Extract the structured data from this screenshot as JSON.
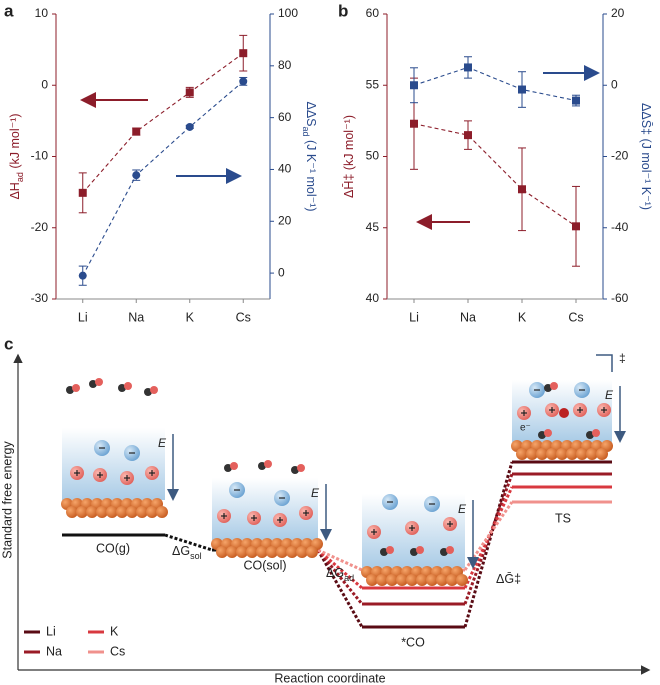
{
  "chart_data": [
    {
      "type": "line",
      "panel": "a",
      "categories": [
        "Li",
        "Na",
        "K",
        "Cs"
      ],
      "ylabel": {
        "symbol": "ΔH",
        "sub": "ad",
        "unit": " (kJ mol⁻¹)"
      },
      "y2label": {
        "symbol": "ΔΔS",
        "sub": "ad",
        "unit": " (J K⁻¹ mol⁻¹)"
      },
      "ylim": [
        -30,
        10
      ],
      "yticks": [
        -30,
        -20,
        -10,
        0,
        10
      ],
      "y2lim": [
        -10,
        100
      ],
      "y2ticks": [
        0,
        20,
        40,
        60,
        80,
        100
      ],
      "series": [
        {
          "color": "#8c1d2a",
          "marker": "square",
          "values": [
            -15.1,
            -6.5,
            -1,
            4.5
          ],
          "errors": [
            2.8,
            0.5,
            0.7,
            2.5
          ]
        },
        {
          "color": "#2a4b8d",
          "marker": "circle",
          "axis": "y2",
          "values": [
            -1,
            37.8,
            56.4,
            74
          ],
          "errors": [
            3.7,
            2,
            0.6,
            1.5
          ]
        }
      ]
    },
    {
      "type": "line",
      "panel": "b",
      "categories": [
        "Li",
        "Na",
        "K",
        "Cs"
      ],
      "ylabel": {
        "symbol": "ΔH̄‡",
        "sub": "",
        "unit": " (kJ mol⁻¹)"
      },
      "y2label": {
        "symbol": "ΔΔS̄‡",
        "sub": "",
        "unit": " (J mol⁻¹ K⁻¹)"
      },
      "ylim": [
        40,
        60
      ],
      "yticks": [
        40,
        45,
        50,
        55,
        60
      ],
      "y2lim": [
        -60,
        20
      ],
      "y2ticks": [
        -60,
        -40,
        -20,
        0,
        20
      ],
      "series": [
        {
          "color": "#8c1d2a",
          "marker": "square",
          "values": [
            52.3,
            51.5,
            47.7,
            45.1
          ],
          "errors": [
            3.2,
            1,
            2.9,
            2.8
          ]
        },
        {
          "color": "#2a4b8d",
          "marker": "square",
          "axis": "y2",
          "values": [
            0,
            5,
            -1.2,
            -4.3
          ],
          "errors": [
            4.9,
            3,
            5,
            1.5
          ]
        }
      ]
    }
  ],
  "diagram": {
    "panel": "c",
    "ylabel": "Standard free energy",
    "xlabel": "Reaction coordinate",
    "states": [
      "CO(g)",
      "CO(sol)",
      "*CO",
      "TS"
    ],
    "steps": [
      {
        "symbol": "ΔG",
        "sub": "sol"
      },
      {
        "symbol": "ΔG",
        "sub": "ad"
      },
      {
        "symbol": "ΔḠ‡",
        "sub": ""
      }
    ],
    "field": "E",
    "ts_mark": "‡",
    "electron": "e⁻",
    "legend": [
      {
        "name": "Li",
        "color": "#5a0b14"
      },
      {
        "name": "Na",
        "color": "#9a1b26"
      },
      {
        "name": "K",
        "color": "#d8383f"
      },
      {
        "name": "Cs",
        "color": "#f0918c"
      }
    ]
  }
}
